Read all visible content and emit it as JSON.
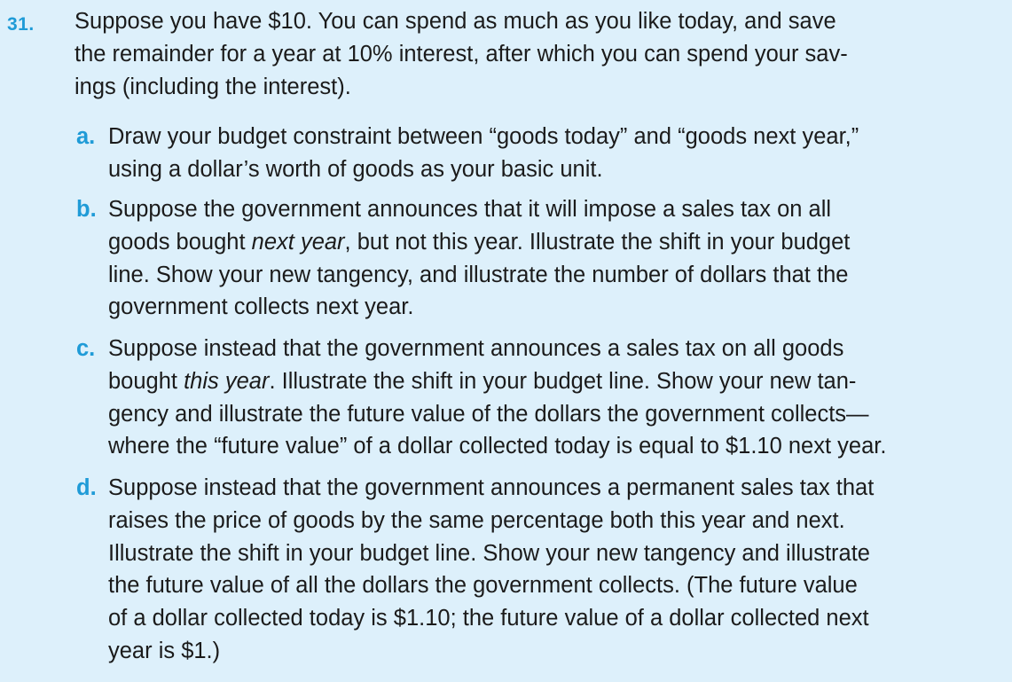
{
  "problem": {
    "number": "31.",
    "stem_lines": [
      "Suppose you have $10. You can spend as much as you like today, and save",
      "the remainder for a year at 10% interest, after which you can spend your sav-",
      "ings (including the interest)."
    ],
    "parts": [
      {
        "label": "a.",
        "lines": [
          "Draw your budget constraint between “goods today” and “goods next year,”",
          "using a dollar’s worth of goods as your basic unit."
        ]
      },
      {
        "label": "b.",
        "line1_pre": "Suppose the government announces that it will impose a sales tax on all",
        "line2_pre": "goods bought ",
        "line2_em": "next year",
        "line2_post": ", but not this year. Illustrate the shift in your budget",
        "lines_rest": [
          "line. Show your new tangency, and illustrate the number of dollars that the",
          "government collects next year."
        ]
      },
      {
        "label": "c.",
        "line1": "Suppose instead that the government announces a sales tax on all goods",
        "line2_pre": "bought ",
        "line2_em": "this year",
        "line2_post": ". Illustrate the shift in your budget line. Show your new tan-",
        "lines_rest": [
          "gency and illustrate the future value of the dollars the government collects—",
          "where the “future value” of a dollar collected today is equal to $1.10 next year."
        ]
      },
      {
        "label": "d.",
        "lines": [
          "Suppose instead that the government announces a permanent sales tax that",
          "raises the price of goods by the same percentage both this year and next.",
          "Illustrate the shift in your budget line. Show your new tangency and illustrate",
          "the future value of all the dollars the government collects. (The future value",
          "of a dollar collected today is $1.10; the future value of a dollar collected next",
          "year is $1.)"
        ]
      }
    ]
  }
}
